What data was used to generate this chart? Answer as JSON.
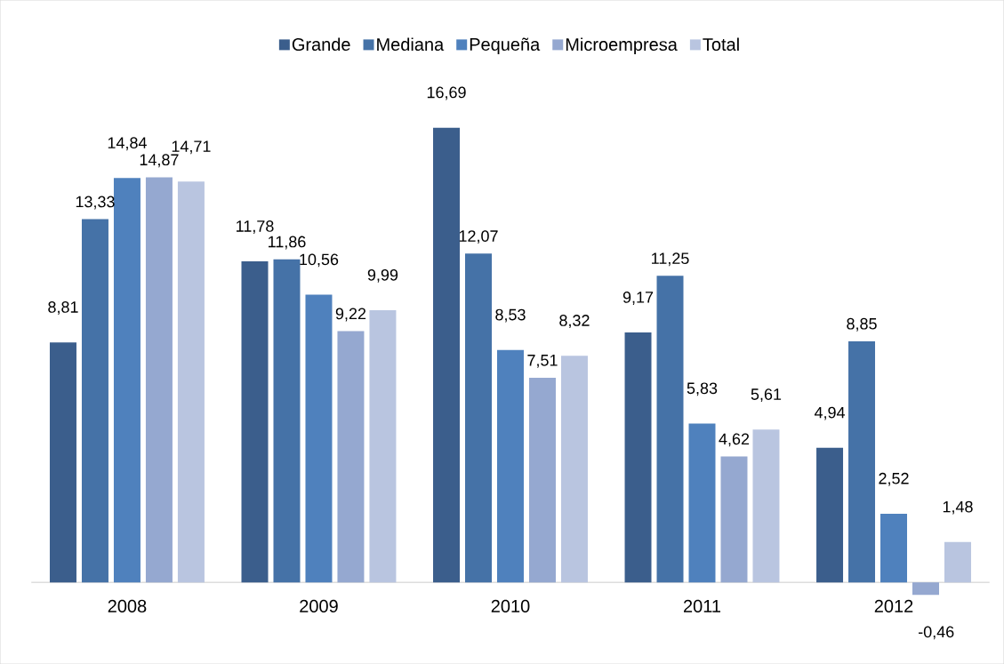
{
  "chart_data": {
    "type": "bar",
    "categories": [
      "2008",
      "2009",
      "2010",
      "2011",
      "2012"
    ],
    "legend": "top",
    "series": [
      {
        "name": "Grande",
        "color": "#3b5e8c",
        "values": [
          8.81,
          11.78,
          16.69,
          9.17,
          4.94
        ],
        "value_labels": [
          "8,81",
          "11,78",
          "16,69",
          "9,17",
          "4,94"
        ]
      },
      {
        "name": "Mediana",
        "color": "#4572a7",
        "values": [
          13.33,
          11.86,
          12.07,
          11.25,
          8.85
        ],
        "value_labels": [
          "13,33",
          "11,86",
          "12,07",
          "11,25",
          "8,85"
        ]
      },
      {
        "name": "Pequeña",
        "color": "#4f81bd",
        "values": [
          14.84,
          10.56,
          8.53,
          5.83,
          2.52
        ],
        "value_labels": [
          "14,84",
          "10,56",
          "8,53",
          "5,83",
          "2,52"
        ]
      },
      {
        "name": "Microempresa",
        "color": "#95a8d0",
        "values": [
          14.87,
          9.22,
          7.51,
          4.62,
          -0.46
        ],
        "value_labels": [
          "14,87",
          "9,22",
          "7,51",
          "4,62",
          "-0,46"
        ]
      },
      {
        "name": "Total",
        "color": "#b9c5e0",
        "values": [
          14.71,
          9.99,
          8.32,
          5.61,
          1.48
        ],
        "value_labels": [
          "14,71",
          "9,99",
          "8,32",
          "5,61",
          "1,48"
        ]
      }
    ]
  }
}
